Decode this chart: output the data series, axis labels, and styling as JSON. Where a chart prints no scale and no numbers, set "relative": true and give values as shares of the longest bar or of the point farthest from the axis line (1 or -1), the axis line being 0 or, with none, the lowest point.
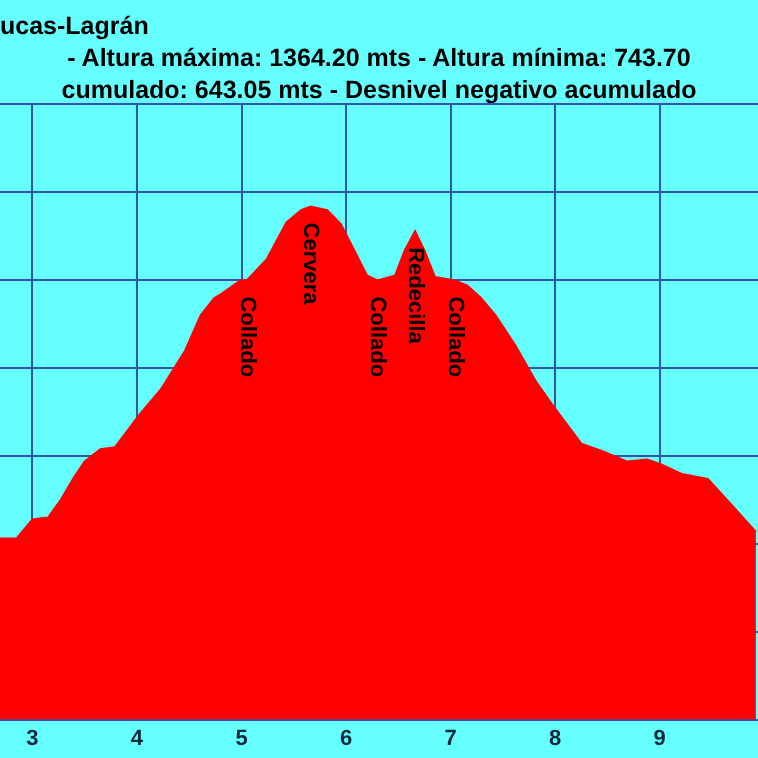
{
  "chart_data": {
    "type": "area",
    "title": "ucas-Lagrán",
    "subtitle": " - Altura máxima: 1364.20 mts - Altura mínima: 743.70",
    "annotations": [
      "cumulado: 643.05 mts - Desnivel negativo acumulado",
      {
        "text": "Collado",
        "x": 5.05,
        "y": 0.856
      },
      {
        "text": "Cervera",
        "x": 5.66,
        "y": 1
      },
      {
        "text": "Collado",
        "x": 6.3,
        "y": 0.856
      },
      {
        "text": "Redecilla",
        "x": 6.66,
        "y": 0.952
      },
      {
        "text": "Collado",
        "x": 7.04,
        "y": 0.856
      }
    ],
    "relative": true,
    "xlim": [
      2.69,
      9.94
    ],
    "xticks": [
      3,
      4,
      5,
      6,
      7,
      8,
      9
    ],
    "grid": true,
    "legend": false,
    "x": [
      2.69,
      2.85,
      3.0,
      3.15,
      3.27,
      3.4,
      3.5,
      3.65,
      3.79,
      4.03,
      4.23,
      4.46,
      4.61,
      4.74,
      4.8,
      4.99,
      5.05,
      5.24,
      5.43,
      5.57,
      5.66,
      5.82,
      5.95,
      6.08,
      6.2,
      6.3,
      6.47,
      6.56,
      6.66,
      6.75,
      6.85,
      7.04,
      7.16,
      7.29,
      7.43,
      7.62,
      7.81,
      8.0,
      8.25,
      8.44,
      8.69,
      8.88,
      9.02,
      9.21,
      9.46,
      9.72,
      9.92
    ],
    "series": [
      {
        "color": "#ff0000",
        "values": [
          0.353,
          0.353,
          0.39,
          0.394,
          0.428,
          0.473,
          0.503,
          0.527,
          0.531,
          0.596,
          0.644,
          0.719,
          0.788,
          0.822,
          0.829,
          0.856,
          0.856,
          0.897,
          0.969,
          0.993,
          1,
          0.993,
          0.966,
          0.914,
          0.866,
          0.856,
          0.866,
          0.914,
          0.952,
          0.914,
          0.863,
          0.856,
          0.846,
          0.822,
          0.788,
          0.729,
          0.661,
          0.606,
          0.538,
          0.524,
          0.503,
          0.507,
          0.497,
          0.479,
          0.469,
          0.411,
          0.366
        ]
      }
    ]
  }
}
